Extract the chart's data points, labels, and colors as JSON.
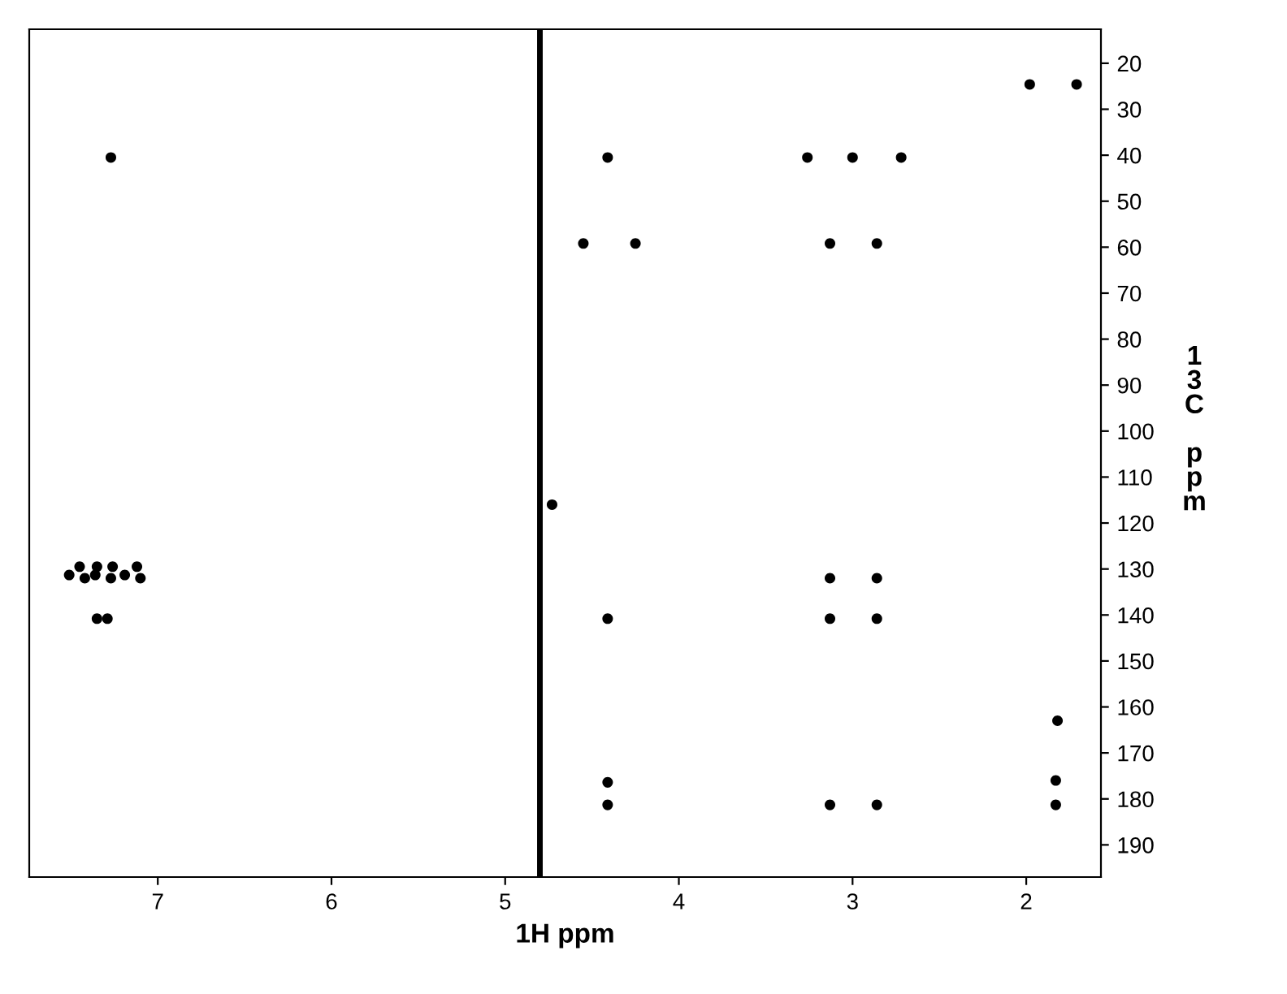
{
  "chart_data": {
    "type": "scatter",
    "xlabel": "1H ppm",
    "ylabel": "13C ppm",
    "x": [
      1.98,
      1.71,
      7.27,
      4.41,
      3.26,
      3.0,
      2.72,
      4.55,
      4.25,
      3.13,
      2.86,
      4.73,
      7.51,
      7.45,
      7.42,
      7.36,
      7.35,
      7.27,
      7.26,
      7.19,
      7.12,
      7.1,
      3.13,
      2.86,
      7.35,
      7.29,
      4.41,
      3.13,
      2.86,
      1.82,
      4.41,
      1.83,
      4.41,
      3.13,
      2.86,
      1.83
    ],
    "values": [
      24.6,
      24.6,
      40.5,
      40.5,
      40.5,
      40.5,
      40.5,
      59.2,
      59.2,
      59.2,
      59.2,
      116,
      131.3,
      129.5,
      132,
      131.3,
      129.5,
      132,
      129.5,
      131.3,
      129.5,
      132,
      132,
      132,
      140.8,
      140.8,
      140.8,
      140.8,
      140.8,
      163,
      176.4,
      176,
      181.3,
      181.3,
      181.3,
      181.3
    ],
    "color": "#000000",
    "marker": "circle",
    "grid": false,
    "ref_lines": [
      {
        "axis": "x",
        "value": 4.8,
        "color": "#000000"
      }
    ],
    "xlim": [
      7.74,
      1.57
    ],
    "xticks": [
      7,
      6,
      5,
      4,
      3,
      2
    ],
    "ylim": [
      197,
      12.6
    ],
    "yticks": [
      20,
      30,
      40,
      50,
      60,
      70,
      80,
      90,
      100,
      110,
      120,
      130,
      140,
      150,
      160,
      170,
      180,
      190
    ]
  }
}
